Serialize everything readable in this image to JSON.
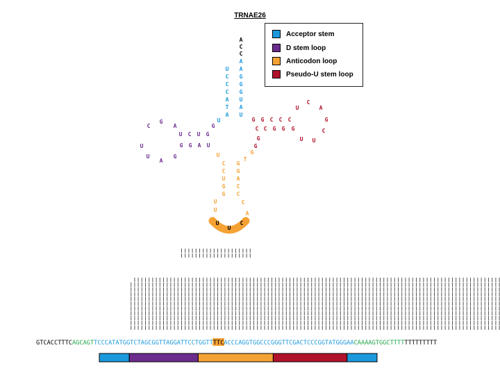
{
  "title": "TRNAE26",
  "colors": {
    "acceptor": "#1c98dc",
    "dloop": "#6c2c8e",
    "anticodon": "#f4a234",
    "pseudou": "#b0122a",
    "primer": "#22a548",
    "flank": "#000000"
  },
  "legend": [
    {
      "label": "Acceptor stem",
      "color": "#1c98dc"
    },
    {
      "label": "D stem loop",
      "color": "#6c2c8e"
    },
    {
      "label": "Anticodon loop",
      "color": "#f4a234"
    },
    {
      "label": "Pseudo-U stem loop",
      "color": "#b0122a"
    }
  ],
  "structure": {
    "tail": [
      "A",
      "C",
      "C"
    ],
    "acceptor_5prime": [
      "U",
      "C",
      "C",
      "C",
      "A",
      "T",
      "A"
    ],
    "acceptor_3prime": [
      "A",
      "A",
      "G",
      "G",
      "G",
      "U",
      "A",
      "U"
    ],
    "d_loop": [
      "G",
      "C",
      "G",
      "A",
      "U",
      "C",
      "U",
      "G",
      "G",
      "G",
      "A",
      "U",
      "U",
      "U",
      "A",
      "G"
    ],
    "anticodon_stem": [
      "C",
      "C",
      "U",
      "G",
      "G",
      "G",
      "G",
      "A",
      "C",
      "C"
    ],
    "anticodon_loop": [
      "U",
      "U",
      "C",
      "A",
      "C",
      "U"
    ],
    "variable": [
      "U",
      "T",
      "G"
    ],
    "pseudou": [
      "G",
      "G",
      "C",
      "C",
      "C",
      "U",
      "C",
      "A",
      "G",
      "C",
      "U",
      "U",
      "G",
      "G",
      "G",
      "C",
      "C",
      "G",
      "G"
    ],
    "anticodon": "UUC"
  },
  "sequence": {
    "segments": [
      {
        "text": "GTCACCTTTC",
        "role": "flank"
      },
      {
        "text": "AGCAGT",
        "role": "primer"
      },
      {
        "text": "TCCCATATGGTCTAGCGGTTAGGATTCCTGGTT",
        "role": "acceptor"
      },
      {
        "text": "TTC",
        "role": "anticodon-highlight"
      },
      {
        "text": "ACCCAGGTGGCCCGGGTTCGACTCCCGGTATGGGAA",
        "role": "acceptor"
      },
      {
        "text": "CAAAAGTGGC",
        "role": "primer"
      },
      {
        "text": "TTTT",
        "role": "primer"
      },
      {
        "text": "TTTTTTTTT",
        "role": "flank"
      }
    ]
  },
  "read_coverage": [
    0,
    0,
    0,
    0,
    0,
    0,
    0,
    0,
    0,
    0,
    0,
    0,
    0,
    0,
    0,
    0,
    10,
    11,
    11,
    11,
    11,
    11,
    11,
    11,
    11,
    11,
    11,
    11,
    11,
    11,
    11,
    11,
    11,
    11,
    11,
    11,
    11,
    11,
    11,
    11,
    11,
    11,
    11,
    11,
    11,
    11,
    11,
    11,
    11,
    11,
    11,
    11,
    11,
    11,
    11,
    11,
    11,
    11,
    11,
    11,
    11,
    11,
    11,
    11,
    11,
    11,
    11,
    11,
    11,
    11,
    11,
    11,
    11,
    11,
    11,
    11,
    11,
    11,
    11,
    11,
    11,
    11,
    11,
    11,
    11,
    11,
    11,
    11,
    11,
    11,
    11,
    11,
    11,
    11,
    11,
    11,
    11,
    11,
    11,
    11,
    11,
    11,
    11,
    11,
    11,
    11,
    11,
    11,
    11,
    11,
    11,
    11,
    11,
    11,
    11,
    11,
    11,
    11,
    11,
    10,
    10,
    10,
    10,
    9,
    9,
    9,
    9,
    7,
    5,
    3,
    0,
    0,
    0,
    0,
    0,
    0,
    0,
    0,
    0
  ],
  "extra_reads": {
    "start": 60,
    "count": 20
  },
  "domain_bar": [
    {
      "region": "Acceptor stem",
      "fraction": 0.108
    },
    {
      "region": "D stem loop",
      "fraction": 0.248
    },
    {
      "region": "Anticodon loop",
      "fraction": 0.27
    },
    {
      "region": "Pseudo-U stem loop",
      "fraction": 0.266
    },
    {
      "region": "Acceptor stem",
      "fraction": 0.108
    }
  ]
}
